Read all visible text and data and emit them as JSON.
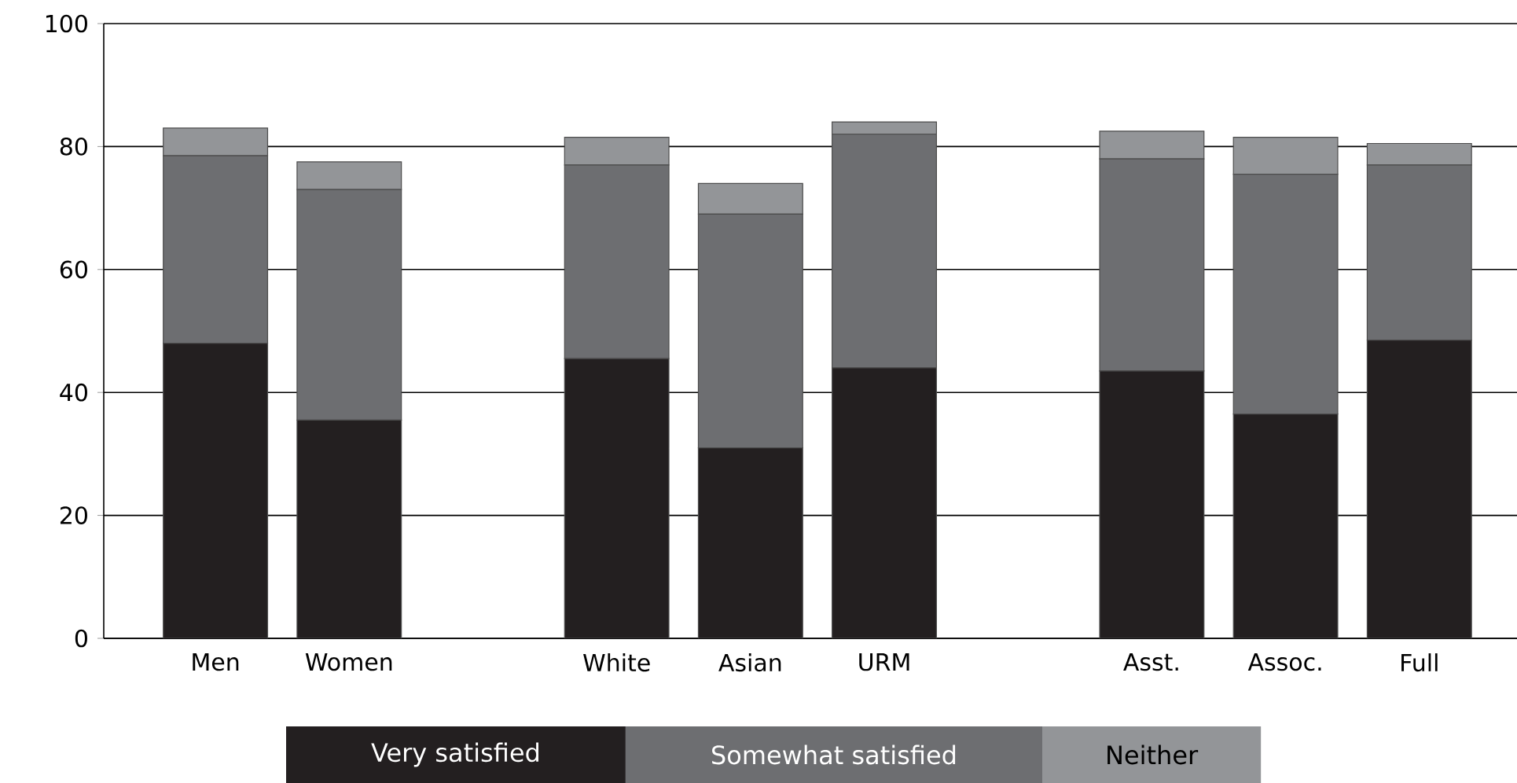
{
  "chart_data": {
    "type": "bar",
    "stacked": true,
    "categories": [
      "Men",
      "Women",
      null,
      "White",
      "Asian",
      "URM",
      null,
      "Asst.",
      "Assoc.",
      "Full"
    ],
    "series": [
      {
        "name": "Very satisfied",
        "color": "#231f20",
        "values": [
          48,
          35.5,
          null,
          45.5,
          31,
          44,
          null,
          43.5,
          36.5,
          48.5
        ]
      },
      {
        "name": "Somewhat satisfied",
        "color": "#6d6e71",
        "values": [
          30.5,
          37.5,
          null,
          31.5,
          38,
          38,
          null,
          34.5,
          39,
          28.5
        ]
      },
      {
        "name": "Neither",
        "color": "#939598",
        "values": [
          4.5,
          4.5,
          null,
          4.5,
          5,
          2,
          null,
          4.5,
          6,
          3.5
        ]
      }
    ],
    "ylim": [
      0,
      100
    ],
    "yticks": [
      0,
      20,
      40,
      60,
      80,
      100
    ],
    "grid": "y",
    "legend": "bottom"
  }
}
